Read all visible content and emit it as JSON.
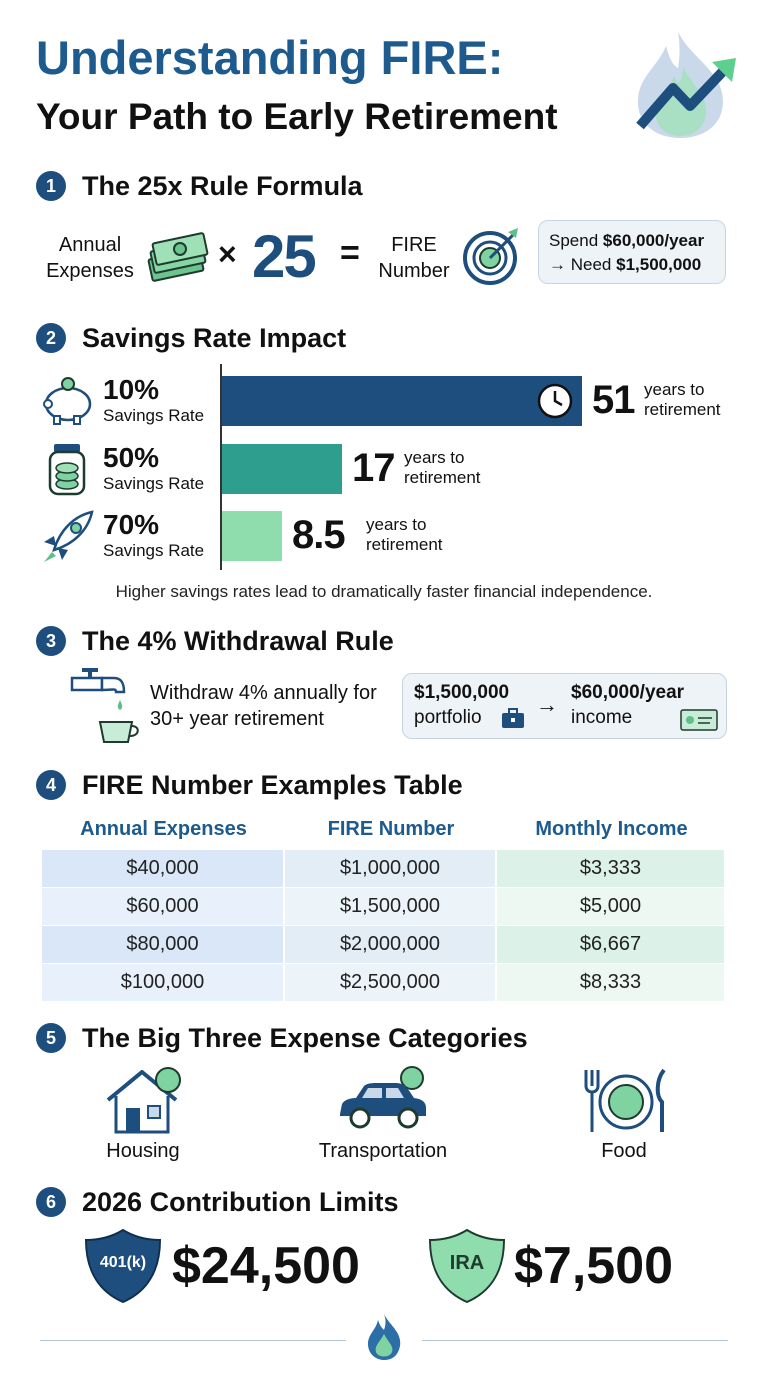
{
  "header": {
    "title": "Understanding FIRE:",
    "subtitle": "Your Path to Early Retirement"
  },
  "rule25": {
    "number": "1",
    "title": "The 25x Rule Formula",
    "left_label": "Annual Expenses",
    "operator": "×",
    "multiplier": "25",
    "equals": "=",
    "result_label": "FIRE Number",
    "note": {
      "line1_text": "Spend",
      "line1_value": "$60,000/year",
      "line2_text": "→ Need",
      "line2_value": "$1,500,000"
    }
  },
  "savings": {
    "number": "2",
    "title": "Savings Rate Impact",
    "items": [
      {
        "rate": "10%",
        "label": "Savings Rate",
        "years": 51,
        "unit": "years to retirement"
      },
      {
        "rate": "50%",
        "label": "Savings Rate",
        "years": 17,
        "unit": "years to retirement"
      },
      {
        "rate": "70%",
        "label": "Savings Rate",
        "years": 8.5,
        "unit": "years to retirement"
      }
    ],
    "note": "Higher savings rates lead to dramatically faster financial independence."
  },
  "withdrawal": {
    "number": "3",
    "title": "The 4% Withdrawal Rule",
    "text": "Withdraw 4% annually for 30+ year retirement",
    "from_value": "$1,500,000",
    "from_label": "portfolio",
    "arrow": "→",
    "to_value": "$60,000/year",
    "to_label": "income"
  },
  "table": {
    "number": "4",
    "title": "FIRE Number Examples Table",
    "columns": [
      "Annual Expenses",
      "FIRE Number",
      "Monthly Income"
    ],
    "rows": [
      [
        "$40,000",
        "$1,000,000",
        "$3,333"
      ],
      [
        "$60,000",
        "$1,500,000",
        "$5,000"
      ],
      [
        "$80,000",
        "$2,000,000",
        "$6,667"
      ],
      [
        "$100,000",
        "$2,500,000",
        "$8,333"
      ]
    ]
  },
  "categories": {
    "number": "5",
    "title": "The Big Three Expense Categories",
    "items": [
      "Housing",
      "Transportation",
      "Food"
    ]
  },
  "limits": {
    "number": "6",
    "title": "2026 Contribution Limits",
    "items": [
      {
        "badge": "401(k)",
        "amount": "$24,500"
      },
      {
        "badge": "IRA",
        "amount": "$7,500"
      }
    ]
  }
}
